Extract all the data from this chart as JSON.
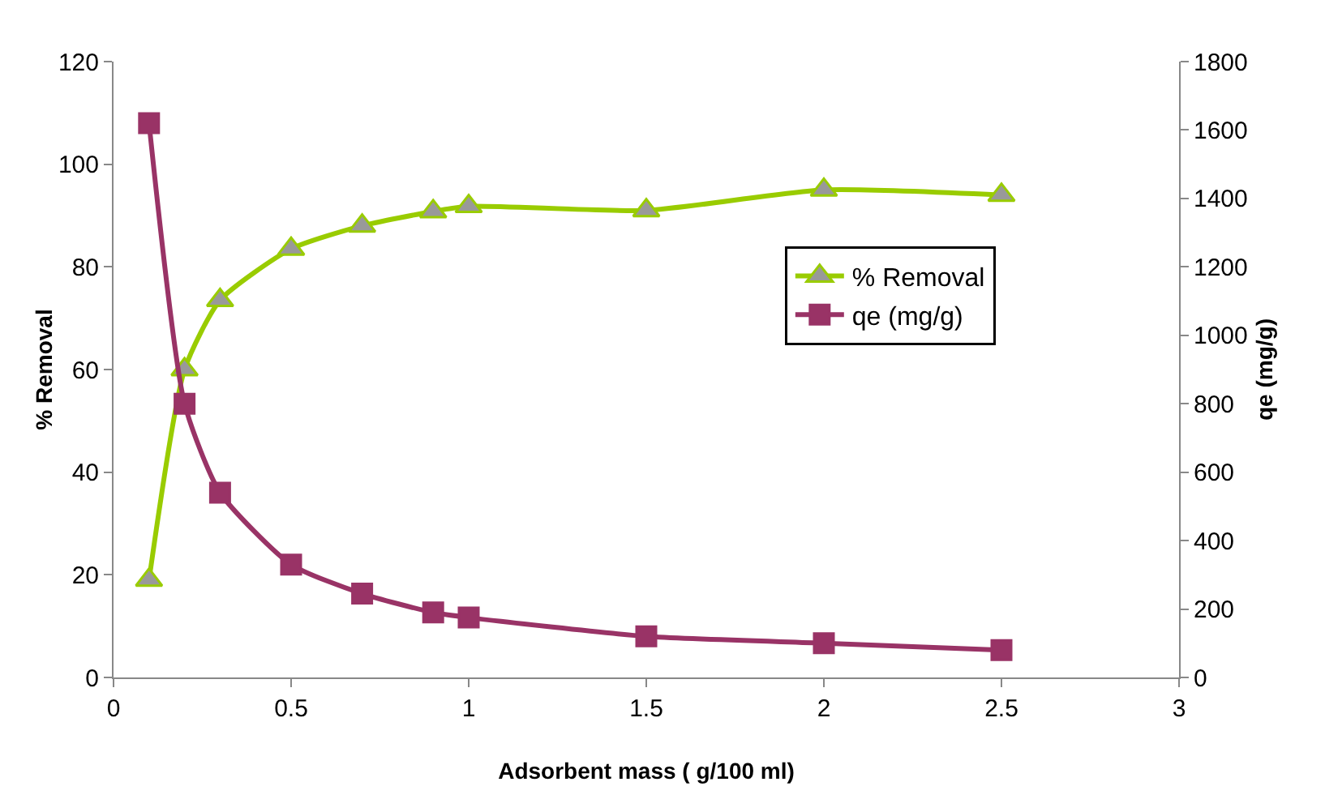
{
  "chart_data": {
    "type": "line",
    "xlabel": "Adsorbent mass ( g/100 ml)",
    "ylabel": "% Removal",
    "y2label": "qe (mg/g)",
    "x": [
      0.1,
      0.2,
      0.3,
      0.5,
      0.7,
      0.9,
      1.0,
      1.5,
      2.0,
      2.5
    ],
    "series": [
      {
        "name": "% Removal",
        "color": "#99cc00",
        "marker": "triangle",
        "values": [
          19,
          60,
          73.5,
          83.5,
          88,
          90.8,
          91.8,
          91,
          95,
          94
        ]
      },
      {
        "name": "qe (mg/g)",
        "color": "#993366",
        "marker": "square",
        "axis": "y2",
        "values": [
          1620,
          800,
          540,
          330,
          245,
          190,
          175,
          120,
          100,
          80
        ]
      }
    ],
    "xlim": [
      0,
      3
    ],
    "xticks": [
      0,
      0.5,
      1,
      1.5,
      2,
      2.5,
      3
    ],
    "ylim": [
      0,
      120
    ],
    "yticks": [
      0,
      20,
      40,
      60,
      80,
      100,
      120
    ],
    "y2lim": [
      0,
      1800
    ],
    "y2ticks": [
      0,
      200,
      400,
      600,
      800,
      1000,
      1200,
      1400,
      1600,
      1800
    ],
    "grid": false,
    "legend": "right",
    "line_style": "solid"
  }
}
